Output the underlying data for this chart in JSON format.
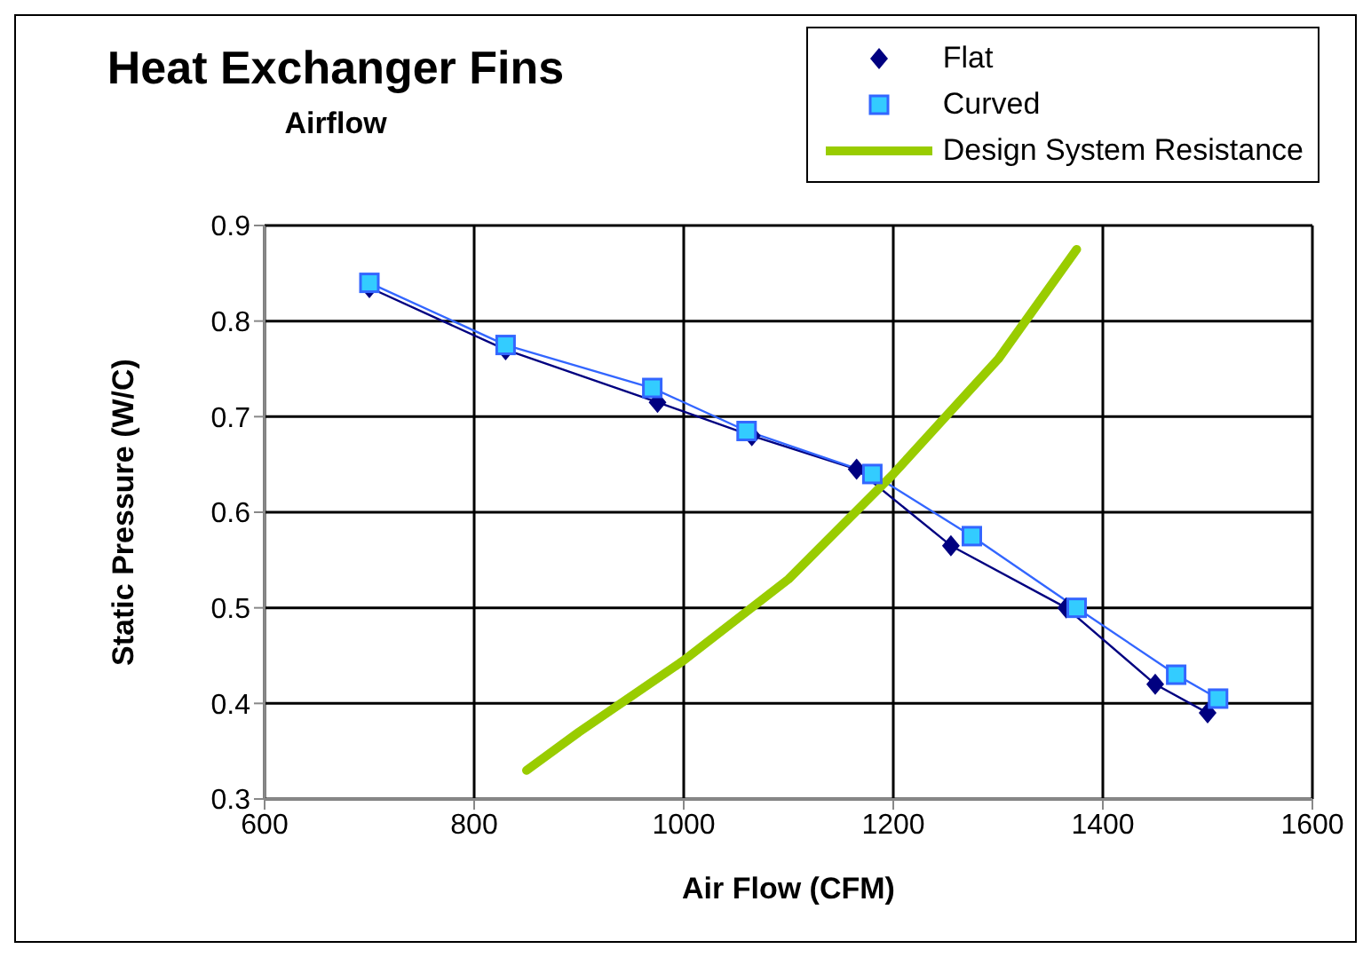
{
  "chart_data": {
    "type": "line",
    "title": "Heat Exchanger Fins",
    "subtitle": "Airflow",
    "xlabel": "Air Flow (CFM)",
    "ylabel": "Static Pressure (W/C)",
    "xlim": [
      600,
      1600
    ],
    "xticks": [
      600,
      800,
      1000,
      1200,
      1400,
      1600
    ],
    "ylim": [
      0.3,
      0.9
    ],
    "yticks": [
      0.3,
      0.4,
      0.5,
      0.6,
      0.7,
      0.8,
      0.9
    ],
    "grid": true,
    "legend": "top right",
    "series": [
      {
        "name": "Flat",
        "color": "#000080",
        "marker": "diamond",
        "x": [
          700,
          830,
          975,
          1065,
          1165,
          1255,
          1365,
          1450,
          1500
        ],
        "values": [
          0.835,
          0.77,
          0.715,
          0.68,
          0.645,
          0.565,
          0.5,
          0.42,
          0.39
        ]
      },
      {
        "name": "Curved",
        "color": "#33ccff",
        "marker": "square",
        "x": [
          700,
          830,
          970,
          1060,
          1180,
          1275,
          1375,
          1470,
          1510
        ],
        "values": [
          0.84,
          0.775,
          0.73,
          0.685,
          0.64,
          0.575,
          0.5,
          0.43,
          0.405
        ]
      },
      {
        "name": "Design System Resistance",
        "color": "#99cc00",
        "marker": "none",
        "x": [
          850,
          900,
          1000,
          1100,
          1200,
          1300,
          1375
        ],
        "values": [
          0.33,
          0.37,
          0.445,
          0.53,
          0.64,
          0.76,
          0.875
        ]
      }
    ]
  }
}
